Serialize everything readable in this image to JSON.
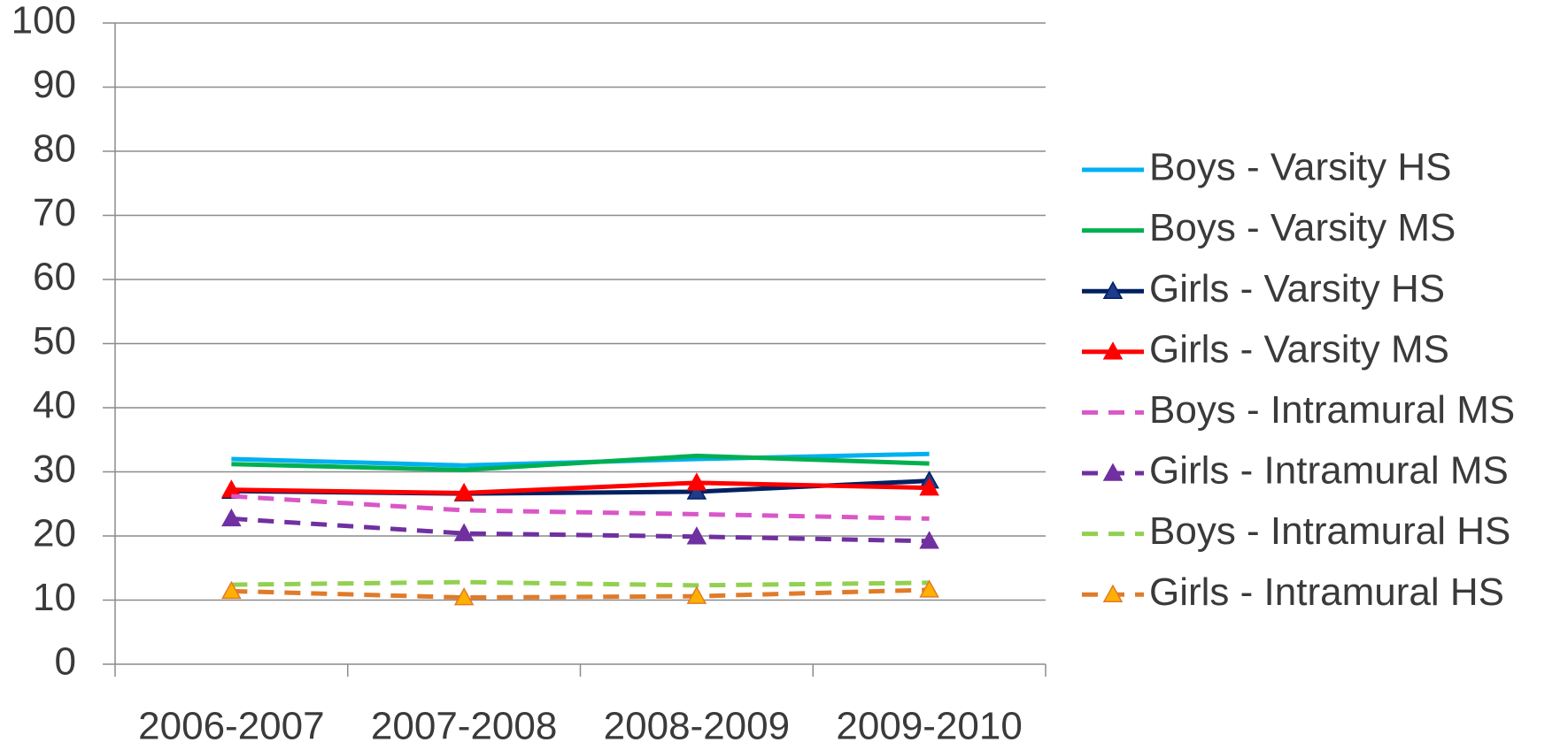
{
  "chart_data": {
    "type": "line",
    "categories": [
      "2006-2007",
      "2007-2008",
      "2008-2009",
      "2009-2010"
    ],
    "ylim": [
      0,
      100
    ],
    "yticks": [
      0,
      10,
      20,
      30,
      40,
      50,
      60,
      70,
      80,
      90,
      100
    ],
    "grid": true,
    "legend": "right",
    "series": [
      {
        "name": "Boys - Varsity HS",
        "color": "#00b0f0",
        "dash": false,
        "values": [
          32,
          31,
          32,
          32.8
        ]
      },
      {
        "name": "Boys - Varsity MS",
        "color": "#00b050",
        "dash": false,
        "values": [
          31.2,
          30.3,
          32.5,
          31.3
        ]
      },
      {
        "name": "Girls - Varsity HS",
        "color": "#002060",
        "dash": false,
        "marker": "triangle",
        "marker_color": "#1f3b8c",
        "values": [
          27,
          26.6,
          26.9,
          28.6
        ]
      },
      {
        "name": "Girls - Varsity MS",
        "color": "#ff0000",
        "dash": false,
        "marker": "triangle",
        "marker_color": "#ff0000",
        "values": [
          27.2,
          26.7,
          28.3,
          27.5
        ]
      },
      {
        "name": "Boys - Intramural MS",
        "color": "#d957c8",
        "dash": true,
        "values": [
          26.2,
          24,
          23.4,
          22.7
        ]
      },
      {
        "name": "Girls - Intramural MS",
        "color": "#7030a0",
        "dash": true,
        "marker": "triangle",
        "marker_color": "#7030a0",
        "values": [
          22.7,
          20.4,
          19.9,
          19.2
        ]
      },
      {
        "name": "Boys - Intramural HS",
        "color": "#92d050",
        "dash": true,
        "values": [
          12.4,
          12.8,
          12.3,
          12.7
        ]
      },
      {
        "name": "Girls - Intramural HS",
        "color": "#e07b2a",
        "dash": true,
        "marker": "triangle",
        "marker_color": "#ffb000",
        "values": [
          11.4,
          10.4,
          10.6,
          11.6
        ]
      }
    ]
  }
}
